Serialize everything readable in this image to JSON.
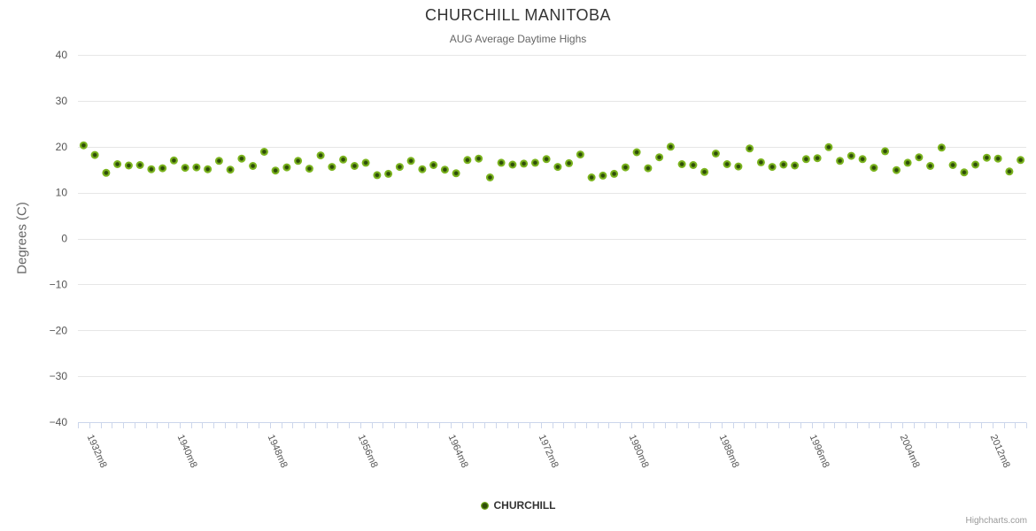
{
  "chart_data": {
    "type": "scatter",
    "title": "CHURCHILL MANITOBA",
    "subtitle": "AUG Average Daytime Highs",
    "xlabel": "",
    "ylabel": "Degrees (C)",
    "ylim": [
      -40,
      40
    ],
    "yticks": [
      40,
      30,
      20,
      10,
      0,
      -10,
      -20,
      -30,
      -40
    ],
    "grid": true,
    "legend_position": "bottom-center",
    "xtick_interval": 8,
    "xtick_labels": [
      "1932m8",
      "1940m8",
      "1948m8",
      "1956m8",
      "1964m8",
      "1972m8",
      "1980m8",
      "1988m8",
      "1996m8",
      "2004m8",
      "2012m8"
    ],
    "x_label_suffix": "m8",
    "series": [
      {
        "name": "CHURCHILL",
        "color": "#7cb51f",
        "marker_center_color": "#2e4d08",
        "points": [
          [
            1932,
            20.3
          ],
          [
            1933,
            18.2
          ],
          [
            1934,
            14.3
          ],
          [
            1935,
            16.2
          ],
          [
            1936,
            15.9
          ],
          [
            1937,
            16.0
          ],
          [
            1938,
            15.1
          ],
          [
            1939,
            15.3
          ],
          [
            1940,
            17.0
          ],
          [
            1941,
            15.4
          ],
          [
            1942,
            15.5
          ],
          [
            1943,
            15.1
          ],
          [
            1944,
            16.9
          ],
          [
            1945,
            15.0
          ],
          [
            1946,
            17.4
          ],
          [
            1947,
            15.8
          ],
          [
            1948,
            18.9
          ],
          [
            1949,
            14.8
          ],
          [
            1950,
            15.5
          ],
          [
            1951,
            16.9
          ],
          [
            1952,
            15.2
          ],
          [
            1953,
            18.1
          ],
          [
            1954,
            15.6
          ],
          [
            1955,
            17.2
          ],
          [
            1956,
            15.8
          ],
          [
            1957,
            16.5
          ],
          [
            1958,
            13.8
          ],
          [
            1959,
            14.1
          ],
          [
            1960,
            15.6
          ],
          [
            1961,
            16.9
          ],
          [
            1962,
            15.1
          ],
          [
            1963,
            16.0
          ],
          [
            1964,
            15.0
          ],
          [
            1965,
            14.2
          ],
          [
            1966,
            17.1
          ],
          [
            1967,
            17.4
          ],
          [
            1968,
            13.3
          ],
          [
            1969,
            16.5
          ],
          [
            1970,
            16.1
          ],
          [
            1971,
            16.3
          ],
          [
            1972,
            16.5
          ],
          [
            1973,
            17.3
          ],
          [
            1974,
            15.6
          ],
          [
            1975,
            16.4
          ],
          [
            1976,
            18.3
          ],
          [
            1977,
            13.3
          ],
          [
            1978,
            13.7
          ],
          [
            1979,
            14.1
          ],
          [
            1980,
            15.5
          ],
          [
            1981,
            18.8
          ],
          [
            1982,
            15.3
          ],
          [
            1983,
            17.7
          ],
          [
            1984,
            20.0
          ],
          [
            1985,
            16.2
          ],
          [
            1986,
            16.0
          ],
          [
            1987,
            14.5
          ],
          [
            1988,
            18.5
          ],
          [
            1989,
            16.2
          ],
          [
            1990,
            15.7
          ],
          [
            1991,
            19.6
          ],
          [
            1992,
            16.6
          ],
          [
            1993,
            15.6
          ],
          [
            1994,
            16.1
          ],
          [
            1995,
            15.9
          ],
          [
            1996,
            17.3
          ],
          [
            1997,
            17.5
          ],
          [
            1998,
            19.9
          ],
          [
            1999,
            16.9
          ],
          [
            2000,
            18.0
          ],
          [
            2001,
            17.3
          ],
          [
            2002,
            15.4
          ],
          [
            2003,
            19.0
          ],
          [
            2004,
            14.9
          ],
          [
            2005,
            16.5
          ],
          [
            2006,
            17.7
          ],
          [
            2007,
            15.8
          ],
          [
            2008,
            19.8
          ],
          [
            2009,
            16.0
          ],
          [
            2010,
            14.4
          ],
          [
            2011,
            16.1
          ],
          [
            2012,
            17.6
          ],
          [
            2013,
            17.4
          ],
          [
            2014,
            14.6
          ],
          [
            2015,
            17.1
          ]
        ]
      }
    ],
    "credits": "Highcharts.com",
    "colors": {
      "grid_line": "#e6e6e6",
      "axis_line": "#ccd6eb",
      "tick_mark": "#ccd6eb"
    }
  }
}
